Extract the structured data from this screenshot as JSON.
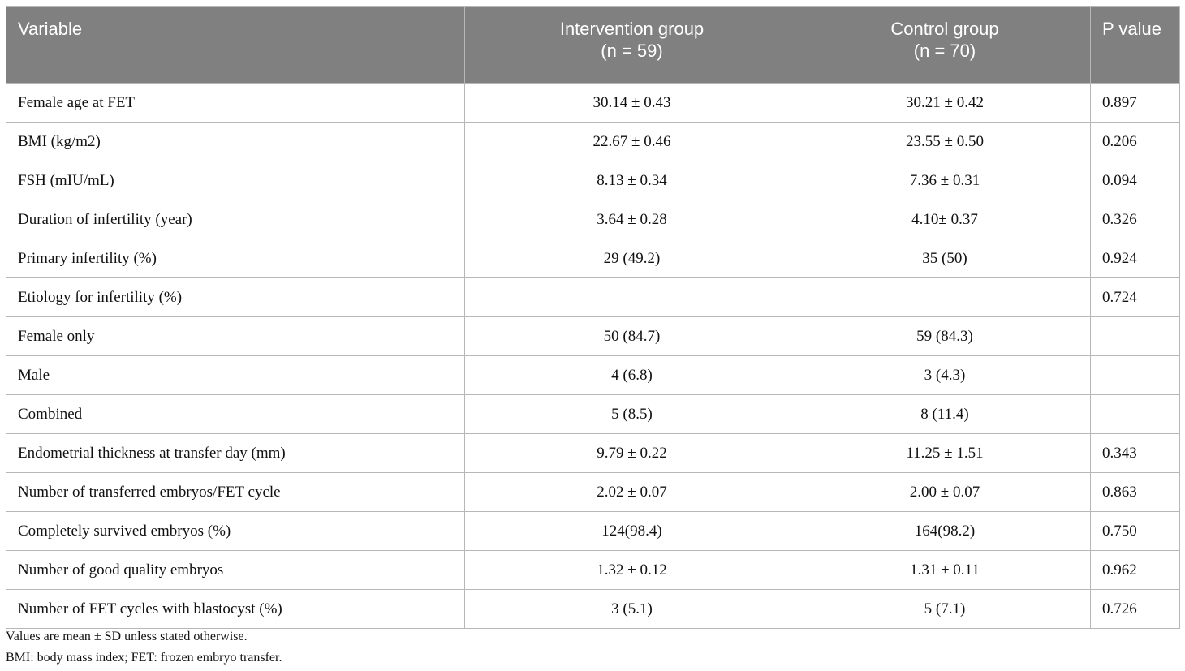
{
  "table": {
    "headers": [
      {
        "line1": "Variable",
        "line2": ""
      },
      {
        "line1": "Intervention group",
        "line2": "(n = 59)"
      },
      {
        "line1": "Control group",
        "line2": "(n = 70)"
      },
      {
        "line1": "P value",
        "line2": ""
      }
    ],
    "rows": [
      [
        "Female age at FET",
        "30.14 ± 0.43",
        "30.21 ± 0.42",
        "0.897"
      ],
      [
        "BMI (kg/m2)",
        "22.67 ± 0.46",
        "23.55 ± 0.50",
        "0.206"
      ],
      [
        "FSH (mIU/mL)",
        "8.13 ± 0.34",
        "7.36 ± 0.31",
        "0.094"
      ],
      [
        "Duration of infertility (year)",
        "3.64 ± 0.28",
        "4.10± 0.37",
        "0.326"
      ],
      [
        "Primary infertility (%)",
        "29 (49.2)",
        "35 (50)",
        "0.924"
      ],
      [
        "Etiology for infertility (%)",
        "",
        "",
        "0.724"
      ],
      [
        "Female only",
        "50 (84.7)",
        "59 (84.3)",
        ""
      ],
      [
        "Male",
        "4 (6.8)",
        "3 (4.3)",
        ""
      ],
      [
        "Combined",
        "5 (8.5)",
        "8 (11.4)",
        ""
      ],
      [
        "Endometrial thickness at transfer day (mm)",
        "9.79 ± 0.22",
        "11.25 ± 1.51",
        "0.343"
      ],
      [
        "Number of transferred embryos/FET cycle",
        "2.02 ± 0.07",
        "2.00 ± 0.07",
        "0.863"
      ],
      [
        "Completely survived embryos (%)",
        "124(98.4)",
        "164(98.2)",
        "0.750"
      ],
      [
        "Number of good quality embryos",
        "1.32 ± 0.12",
        "1.31 ± 0.11",
        "0.962"
      ],
      [
        "Number of FET cycles with blastocyst (%)",
        "3 (5.1)",
        "5 (7.1)",
        "0.726"
      ]
    ]
  },
  "notes": [
    "Values are mean ± SD unless stated otherwise.",
    "BMI: body mass index; FET: frozen embryo transfer."
  ]
}
